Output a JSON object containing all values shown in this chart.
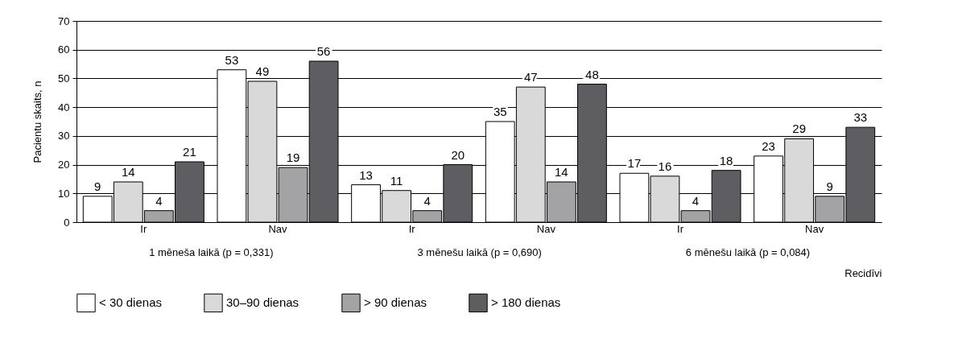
{
  "chart_data": {
    "type": "bar",
    "categories": [
      "Ir",
      "Nav",
      "Ir",
      "Nav",
      "Ir",
      "Nav"
    ],
    "series": [
      {
        "name": "< 30 dienas",
        "color": "#ffffff",
        "values": [
          9,
          53,
          13,
          35,
          17,
          23
        ]
      },
      {
        "name": "30–90 dienas",
        "color": "#d9d9d9",
        "values": [
          14,
          49,
          11,
          47,
          16,
          29
        ]
      },
      {
        "name": "> 90 dienas",
        "color": "#a3a3a5",
        "values": [
          4,
          19,
          4,
          14,
          4,
          9
        ]
      },
      {
        "name": "> 180 dienas",
        "color": "#5e5e62",
        "values": [
          21,
          56,
          20,
          48,
          18,
          33
        ]
      }
    ],
    "ylabel": "Pacientu skaits, n",
    "xlabel": "Recidīvi",
    "annotations": [
      "1 mēneša laikā (p = 0,331)",
      "3 mēnešu laikā (p = 0,690)",
      "6 mēnešu laikā (p = 0,084)"
    ],
    "ylim": [
      0,
      70
    ],
    "yticks": [
      0,
      10,
      20,
      30,
      40,
      50,
      60,
      70
    ],
    "grid": "y",
    "legend": "bottom",
    "data_labels": true
  }
}
